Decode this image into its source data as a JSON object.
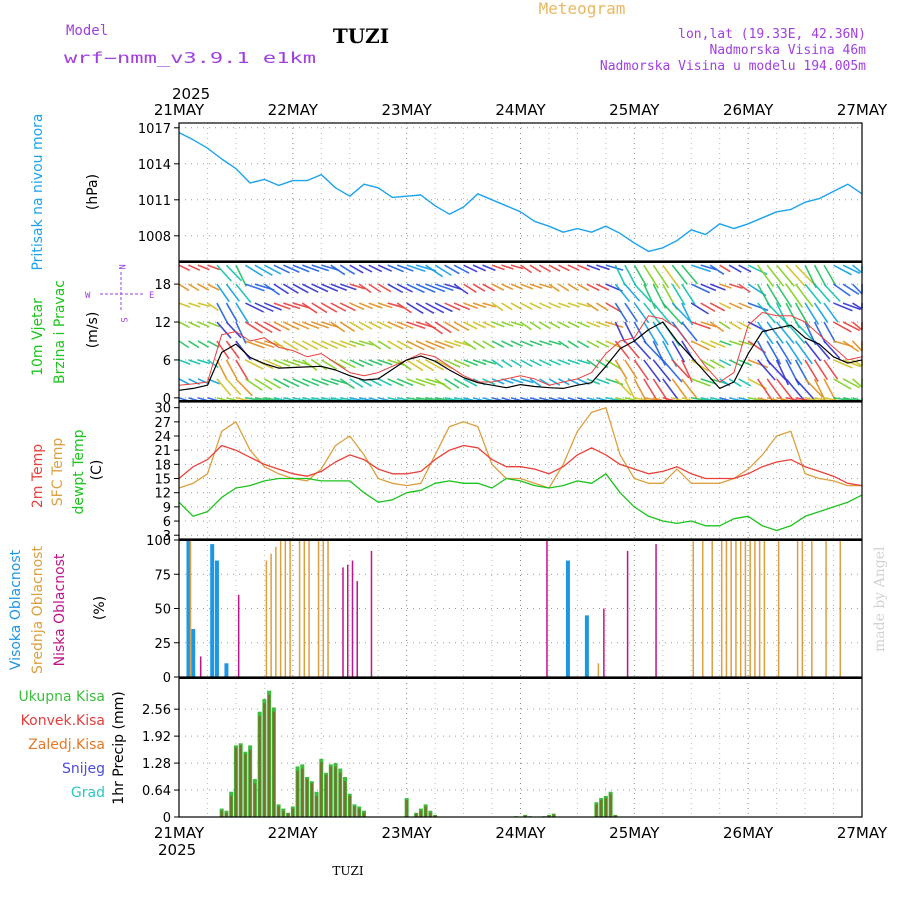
{
  "header": {
    "model_label": "Model",
    "model_name": "wrf−nmm_v3.9.1 e1km",
    "station": "TUZI",
    "product": "Meteogram",
    "coords": "lon,lat (19.33E, 42.36N)",
    "elevation": "Nadmorska Visina 46m",
    "model_elevation": "Nadmorska Visina u modelu 194.005m",
    "watermark": "made by Angel",
    "footer_station": "TUZI"
  },
  "colors": {
    "pressure": "#1ca3ec",
    "t2m": "#e8413a",
    "sfc": "#dca040",
    "dewpt": "#1dc31d",
    "high_cloud": "#1e96e6",
    "mid_cloud": "#dca040",
    "low_cloud": "#c0148c",
    "total_precip": "#3cbe3c",
    "conv_precip": "#e63c3c",
    "frozen_precip": "#e67828",
    "snow": "#4b4bdc",
    "hail": "#28c8c8",
    "title_purple": "#a040e0",
    "meteogram_gold": "#e8b860"
  },
  "time_axis": {
    "year_top": "2025",
    "year_bottom": "2025",
    "days": [
      "21MAY",
      "22MAY",
      "23MAY",
      "24MAY",
      "25MAY",
      "26MAY",
      "27MAY"
    ]
  },
  "chart_data": [
    {
      "type": "line",
      "panel": "pressure",
      "ylabel": "Pritisak na nivou mora",
      "unit": "(hPa)",
      "ylim": [
        1005.9,
        1017.4
      ],
      "yticks": [
        1008,
        1011,
        1014,
        1017
      ],
      "x": [
        0,
        3,
        6,
        9,
        12,
        15,
        18,
        21,
        24,
        27,
        30,
        33,
        36,
        39,
        42,
        45,
        48,
        51,
        54,
        57,
        60,
        63,
        66,
        69,
        72,
        75,
        78,
        81,
        84,
        87,
        90,
        93,
        96,
        99,
        102,
        105,
        108,
        111,
        114,
        117,
        120,
        123,
        126,
        129,
        132,
        135,
        138,
        141,
        144
      ],
      "series": [
        {
          "name": "Pritisak na nivou mora",
          "values": [
            1016.6,
            1016.0,
            1015.3,
            1014.4,
            1013.6,
            1012.4,
            1012.7,
            1012.2,
            1012.6,
            1012.6,
            1013.1,
            1012.0,
            1011.3,
            1012.3,
            1012.0,
            1011.2,
            1011.3,
            1011.4,
            1010.5,
            1009.8,
            1010.4,
            1011.5,
            1011.0,
            1010.5,
            1010.0,
            1009.2,
            1008.8,
            1008.3,
            1008.6,
            1008.3,
            1008.8,
            1008.2,
            1007.4,
            1006.7,
            1007.0,
            1007.6,
            1008.5,
            1008.1,
            1009.0,
            1008.6,
            1009.0,
            1009.5,
            1010.0,
            1010.2,
            1010.8,
            1011.1,
            1011.7,
            1012.3,
            1011.5
          ]
        }
      ]
    },
    {
      "type": "line",
      "panel": "wind",
      "ylabel": "10m Vjetar",
      "ylabel2": "Brzina i Pravac",
      "unit": "(m/s)",
      "ylim": [
        -0.5,
        21.5
      ],
      "yticks": [
        0,
        6,
        12,
        18
      ],
      "compass": {
        "n": "N",
        "s": "S",
        "e": "E",
        "w": "W"
      },
      "x": [
        0,
        3,
        6,
        9,
        12,
        15,
        18,
        21,
        24,
        27,
        30,
        33,
        36,
        39,
        42,
        45,
        48,
        51,
        54,
        57,
        60,
        63,
        66,
        69,
        72,
        75,
        78,
        81,
        84,
        87,
        90,
        93,
        96,
        99,
        102,
        105,
        108,
        111,
        114,
        117,
        120,
        123,
        126,
        129,
        132,
        135,
        138,
        141,
        144
      ],
      "series": [
        {
          "name": "speed",
          "values": [
            1.2,
            1.5,
            2.0,
            7.2,
            8.5,
            6.4,
            5.4,
            4.7,
            4.8,
            4.9,
            5.0,
            4.4,
            3.5,
            2.8,
            3.0,
            4.5,
            6.0,
            6.6,
            5.8,
            4.4,
            3.2,
            2.4,
            2.0,
            1.6,
            2.1,
            1.8,
            1.6,
            1.5,
            2.0,
            2.4,
            5.0,
            7.8,
            9.0,
            10.8,
            12.0,
            9.0,
            6.5,
            4.0,
            1.5,
            2.5,
            7.0,
            10.5,
            11.0,
            11.5,
            9.5,
            8.5,
            6.5,
            5.5,
            6.0
          ]
        },
        {
          "name": "gust",
          "values": [
            2.0,
            2.2,
            2.5,
            10.0,
            10.5,
            9.0,
            9.5,
            8.0,
            7.5,
            6.5,
            7.0,
            5.5,
            4.0,
            3.5,
            4.0,
            5.0,
            6.0,
            7.0,
            6.5,
            5.0,
            3.5,
            2.5,
            2.5,
            3.0,
            3.5,
            3.0,
            2.0,
            2.5,
            3.0,
            4.0,
            7.0,
            9.0,
            9.5,
            13.0,
            12.5,
            11.0,
            8.0,
            5.0,
            2.5,
            4.0,
            11.5,
            13.5,
            13.0,
            13.0,
            12.0,
            10.0,
            8.0,
            6.0,
            6.5
          ]
        }
      ]
    },
    {
      "type": "line",
      "panel": "temperature",
      "ylabel": "2m Temp",
      "ylabel2": "SFC Temp",
      "ylabel3": "dewpt Temp",
      "unit": "(C)",
      "ylim": [
        2.2,
        31.2
      ],
      "yticks": [
        3,
        6,
        9,
        12,
        15,
        18,
        21,
        24,
        27,
        30
      ],
      "x": [
        0,
        3,
        6,
        9,
        12,
        15,
        18,
        21,
        24,
        27,
        30,
        33,
        36,
        39,
        42,
        45,
        48,
        51,
        54,
        57,
        60,
        63,
        66,
        69,
        72,
        75,
        78,
        81,
        84,
        87,
        90,
        93,
        96,
        99,
        102,
        105,
        108,
        111,
        114,
        117,
        120,
        123,
        126,
        129,
        132,
        135,
        138,
        141,
        144
      ],
      "series": [
        {
          "name": "2m Temp",
          "values": [
            15,
            17.5,
            19,
            22,
            21,
            19.5,
            18,
            17,
            16,
            15.5,
            16.5,
            18.5,
            20,
            19,
            17,
            16,
            16,
            16.5,
            19,
            21,
            22,
            21.5,
            19,
            17.5,
            17.5,
            17,
            16,
            17.5,
            20,
            21.5,
            20,
            18,
            17,
            16,
            16.5,
            17.5,
            16,
            15,
            15,
            15,
            16,
            17.5,
            18.5,
            19,
            17.5,
            16.5,
            15.5,
            14,
            13.5
          ]
        },
        {
          "name": "SFC Temp",
          "values": [
            13,
            14,
            16,
            25,
            27,
            21,
            17.5,
            16,
            15,
            14.5,
            17,
            22,
            24,
            20,
            15,
            14,
            13.5,
            14,
            20,
            26,
            27,
            26,
            18,
            15,
            15,
            14,
            13,
            18,
            25,
            29,
            30,
            20,
            15,
            14,
            14,
            17,
            14,
            14,
            14,
            15,
            17,
            20,
            24,
            25,
            16,
            15,
            14.5,
            13.5,
            13.5
          ]
        },
        {
          "name": "dewpt Temp",
          "values": [
            10,
            7,
            8,
            11,
            13,
            13.5,
            14.5,
            15,
            15,
            15,
            14.5,
            14.5,
            14.5,
            12,
            10,
            10.5,
            12,
            12.5,
            14,
            14.5,
            14,
            14,
            13,
            15,
            14.5,
            13.5,
            13,
            13.5,
            14.5,
            14,
            16,
            12,
            9,
            7,
            6,
            5.5,
            6,
            5,
            5,
            6.5,
            7,
            5,
            4,
            5,
            7,
            8,
            9,
            10,
            11.5
          ]
        }
      ]
    },
    {
      "type": "bar",
      "panel": "cloud",
      "ylabel": "Visoka Oblacnost",
      "ylabel2": "Srednja Oblacnost",
      "ylabel3": "Niska Oblacnost",
      "unit": "(%)",
      "ylim": [
        0,
        100
      ],
      "yticks": [
        0,
        25,
        50,
        75,
        100
      ],
      "hours": [
        1,
        2,
        3,
        5,
        7,
        8,
        9,
        10,
        12,
        13,
        14,
        15,
        16,
        17,
        18,
        19,
        20,
        21,
        22,
        23,
        25,
        26,
        27,
        29,
        30,
        31,
        34,
        35,
        36,
        37,
        38,
        41,
        45,
        46,
        47,
        50,
        52,
        54,
        55,
        57,
        58,
        59,
        62,
        66,
        69,
        70,
        78,
        79,
        82,
        86,
        88,
        90,
        92,
        95,
        98,
        101,
        104,
        108,
        110,
        112,
        114,
        115,
        116,
        117,
        118,
        119,
        120,
        121,
        122,
        123,
        126,
        130,
        131,
        133,
        136,
        139
      ],
      "series": [
        {
          "name": "Visoka Oblacnost",
          "values": [
            0,
            100,
            35,
            0,
            97,
            85,
            0,
            10,
            0,
            0,
            0,
            0,
            0,
            0,
            0,
            0,
            0,
            0,
            0,
            0,
            0,
            0,
            0,
            0,
            0,
            0,
            0,
            0,
            0,
            0,
            0,
            0,
            0,
            0,
            0,
            0,
            0,
            0,
            0,
            0,
            0,
            0,
            0,
            0,
            0,
            0,
            0,
            0,
            85,
            45,
            0,
            0,
            0,
            0,
            0,
            0,
            0,
            0,
            0,
            0,
            0,
            0,
            0,
            0,
            0,
            0,
            0,
            0,
            0,
            0,
            0,
            0,
            0,
            0,
            0,
            0
          ]
        },
        {
          "name": "Srednja Oblacnost",
          "values": [
            0,
            100,
            0,
            0,
            0,
            0,
            0,
            0,
            0,
            0,
            0,
            0,
            0,
            0,
            85,
            90,
            95,
            100,
            100,
            100,
            100,
            100,
            100,
            100,
            100,
            100,
            0,
            0,
            0,
            0,
            0,
            0,
            0,
            0,
            0,
            0,
            0,
            0,
            0,
            0,
            0,
            0,
            0,
            0,
            0,
            0,
            0,
            0,
            0,
            0,
            10,
            0,
            0,
            0,
            0,
            0,
            0,
            100,
            100,
            100,
            100,
            100,
            100,
            100,
            100,
            100,
            100,
            100,
            100,
            100,
            100,
            100,
            100,
            100,
            100,
            100
          ]
        },
        {
          "name": "Niska Oblacnost",
          "values": [
            0,
            0,
            0,
            15,
            0,
            0,
            0,
            0,
            0,
            60,
            0,
            0,
            0,
            0,
            0,
            0,
            0,
            0,
            0,
            0,
            0,
            0,
            0,
            0,
            0,
            0,
            0,
            80,
            82,
            85,
            70,
            92,
            0,
            0,
            0,
            0,
            0,
            0,
            0,
            0,
            0,
            0,
            0,
            0,
            0,
            0,
            100,
            0,
            0,
            0,
            0,
            50,
            0,
            92,
            0,
            97,
            0,
            0,
            0,
            0,
            0,
            0,
            0,
            0,
            0,
            0,
            0,
            0,
            0,
            0,
            0,
            0,
            0,
            0,
            0,
            0
          ]
        }
      ]
    },
    {
      "type": "bar",
      "panel": "precip",
      "ylabel": "1hr Precip (mm)",
      "legend": [
        "Ukupna Kisa",
        "Konvek.Kisa",
        "Zaledj.Kisa",
        "Snijeg",
        "Grad"
      ],
      "ylim": [
        0,
        3.3
      ],
      "yticks": [
        0,
        0.64,
        1.28,
        1.92,
        2.56
      ],
      "hours": [
        9,
        10,
        11,
        12,
        13,
        14,
        15,
        16,
        17,
        18,
        19,
        20,
        21,
        22,
        23,
        24,
        25,
        26,
        27,
        28,
        29,
        30,
        31,
        32,
        33,
        34,
        35,
        36,
        37,
        38,
        39,
        48,
        50,
        51,
        52,
        53,
        54,
        71,
        72,
        73,
        74,
        75,
        76,
        77,
        78,
        79,
        80,
        88,
        89,
        90,
        91,
        92,
        93
      ],
      "series": [
        {
          "name": "Ukupna Kisa",
          "values": [
            0.2,
            0.15,
            0.6,
            1.7,
            1.75,
            1.55,
            1.7,
            0.9,
            2.5,
            2.8,
            3.0,
            2.6,
            0.3,
            0.2,
            0.1,
            0.25,
            1.2,
            1.25,
            0.95,
            0.85,
            0.6,
            1.38,
            1.05,
            1.25,
            1.28,
            1.15,
            0.95,
            0.55,
            0.3,
            0.25,
            0.15,
            0.45,
            0.1,
            0.2,
            0.3,
            0.15,
            0.05,
            0.02,
            0.01,
            0.05,
            0.02,
            0.01,
            0.01,
            0.02,
            0.05,
            0.08,
            0.01,
            0.35,
            0.45,
            0.5,
            0.6,
            0.05,
            0.01
          ]
        },
        {
          "name": "Konvek.Kisa",
          "values": [
            0.15,
            0.1,
            0.5,
            1.65,
            1.7,
            1.5,
            1.6,
            0.8,
            2.4,
            2.7,
            2.9,
            2.5,
            0.25,
            0.15,
            0.08,
            0.2,
            1.1,
            1.15,
            0.9,
            0.8,
            0.5,
            1.3,
            1.0,
            1.2,
            1.2,
            1.05,
            0.85,
            0.5,
            0.25,
            0.2,
            0.1,
            0.4,
            0.08,
            0.15,
            0.25,
            0.1,
            0.04,
            0.01,
            0.01,
            0.04,
            0.01,
            0.01,
            0.01,
            0.01,
            0.04,
            0.06,
            0.01,
            0.3,
            0.4,
            0.45,
            0.55,
            0.04,
            0.01
          ]
        }
      ]
    }
  ]
}
